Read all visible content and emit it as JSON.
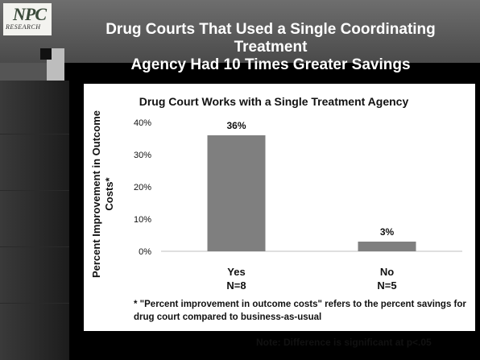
{
  "slide": {
    "title": "Drug Courts That Used a Single Coordinating Treatment\nAgency Had 10 Times Greater Savings",
    "logo_text": "NPC",
    "logo_sub": "RESEARCH",
    "footnote": "* \"Percent improvement in outcome costs\" refers to the percent savings for drug court compared to business-as-usual",
    "note": "Note: Difference is significant at p<.05"
  },
  "colors": {
    "bar": "#7f7f7f",
    "panel": "#ffffff",
    "axis": "#bfbfbf",
    "text": "#111111"
  },
  "chart_data": {
    "type": "bar",
    "title": "Drug Court Works with a Single Treatment Agency",
    "ylabel": "Percent Improvement in Outcome Costs*",
    "ylabel_lines": [
      "Percent Improvement in Outcome",
      "Costs*"
    ],
    "categories": [
      "Yes",
      "No"
    ],
    "sublabels": [
      "N=8",
      "N=5"
    ],
    "values": [
      36,
      3
    ],
    "value_labels": [
      "36%",
      "3%"
    ],
    "ylim": [
      0,
      40
    ],
    "yticks": [
      0,
      10,
      20,
      30,
      40
    ],
    "ytick_labels": [
      "0%",
      "10%",
      "20%",
      "30%",
      "40%"
    ],
    "grid": false,
    "legend": "none"
  }
}
